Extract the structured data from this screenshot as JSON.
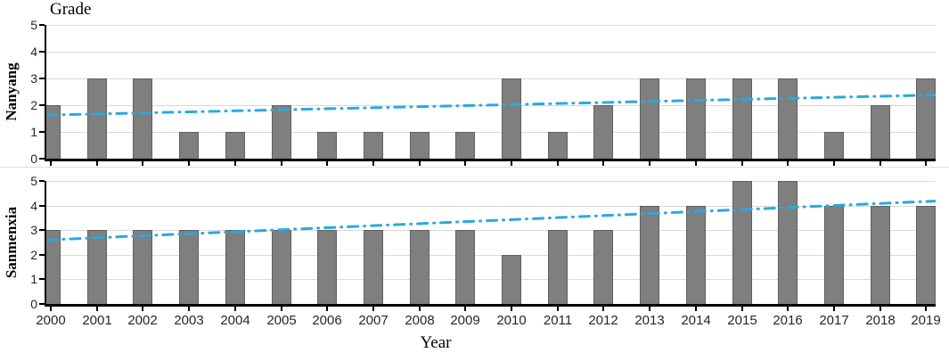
{
  "chart_data": {
    "type": "bar",
    "title": "Grade",
    "xlabel": "Year",
    "categories": [
      "2000",
      "2001",
      "2002",
      "2003",
      "2004",
      "2005",
      "2006",
      "2007",
      "2008",
      "2009",
      "2010",
      "2011",
      "2012",
      "2013",
      "2014",
      "2015",
      "2016",
      "2017",
      "2018",
      "2019"
    ],
    "y_ticks": [
      "0",
      "1",
      "2",
      "3",
      "4",
      "5"
    ],
    "ylim": [
      0,
      5
    ],
    "grid": true,
    "legend": false,
    "series": [
      {
        "name": "Nanyang",
        "type": "bar",
        "values": [
          2,
          3,
          3,
          1,
          1,
          2,
          1,
          1,
          1,
          1,
          3,
          1,
          2,
          3,
          3,
          3,
          3,
          1,
          2,
          3
        ]
      },
      {
        "name": "Sanmenxia",
        "type": "bar",
        "values": [
          3,
          3,
          3,
          3,
          3,
          3,
          3,
          3,
          3,
          3,
          2,
          3,
          3,
          4,
          4,
          5,
          5,
          4,
          4,
          4
        ]
      }
    ],
    "trend_lines": [
      {
        "panel": "Nanyang",
        "style": "dash-dot",
        "value_at_left": 1.63,
        "value_at_right": 2.38
      },
      {
        "panel": "Sanmenxia",
        "style": "dash-dot",
        "value_at_left": 2.6,
        "value_at_right": 4.18
      }
    ],
    "colors": {
      "bar": "#7f7f7f",
      "bar_border": "#606060",
      "trend": "#29a9e0",
      "grid": "#d9d9d9",
      "axis": "#000000",
      "separator": "#dcdcdc",
      "tick_text": "#262626"
    }
  }
}
